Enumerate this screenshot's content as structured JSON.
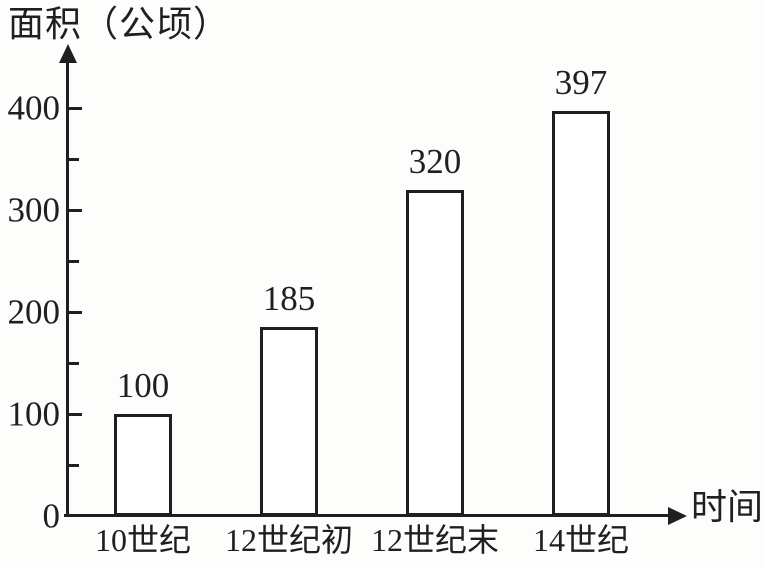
{
  "chart_data": {
    "type": "bar",
    "title": "面积（公顷）",
    "xlabel": "时间",
    "ylabel": "面积（公顷）",
    "categories": [
      "10世纪",
      "12世纪初",
      "12世纪末",
      "14世纪"
    ],
    "values": [
      100,
      185,
      320,
      397
    ],
    "value_labels": [
      "100",
      "185",
      "320",
      "397"
    ],
    "y_tick_labels": [
      "0",
      "100",
      "200",
      "300",
      "400"
    ],
    "y_major_ticks": [
      0,
      100,
      200,
      300,
      400
    ],
    "y_minor_ticks": [
      50,
      150,
      250,
      350
    ],
    "ylim": [
      0,
      450
    ],
    "grid": false,
    "legend_position": "none",
    "bar_fill": "#ffffff",
    "ink_color": "#1f1f1f",
    "background_color": "#fdfdfc"
  }
}
